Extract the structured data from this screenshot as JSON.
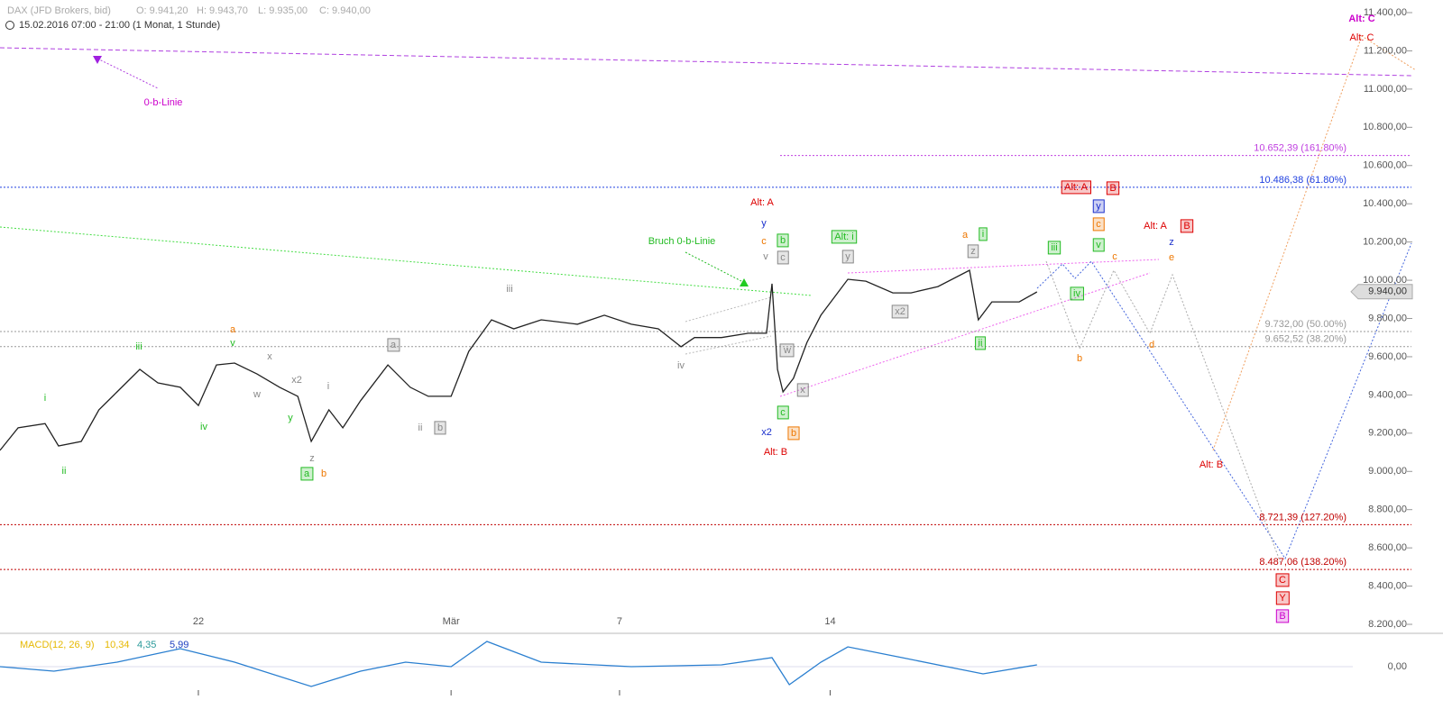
{
  "chart_data": [
    {
      "type": "line",
      "title": "DAX (JFD Brokers, bid)",
      "quote": [
        "O: 9.941,20",
        "H: 9.943,70",
        "L: 9.935,00",
        "C: 9.940,00"
      ],
      "subtitle": "15.02.2016 07:00 - 21:00 (1 Monat, 1 Stunde)",
      "color": "#222222",
      "x": [
        0.29,
        0.72,
        1.36,
        1.68,
        2.22,
        2.64,
        3.07,
        3.61,
        4.04,
        4.57,
        5.0,
        5.43,
        5.86,
        6.39,
        6.93,
        7.36,
        7.68,
        8.1,
        8.43,
        8.85,
        9.5,
        10.03,
        10.46,
        11.0,
        11.42,
        11.96,
        12.49,
        13.14,
        14.0,
        14.64,
        15.28,
        15.92,
        16.46,
        16.78,
        17.42,
        18.06,
        18.49,
        18.62,
        18.75,
        18.88,
        19.13,
        19.45,
        19.78,
        20.42,
        20.85,
        21.49,
        21.92,
        22.56,
        23.31,
        23.52,
        23.84,
        24.49,
        24.91
      ],
      "values": [
        9110,
        9228,
        9250,
        9133,
        9157,
        9322,
        9416,
        9534,
        9463,
        9440,
        9345,
        9557,
        9567,
        9510,
        9440,
        9393,
        9157,
        9322,
        9228,
        9370,
        9557,
        9440,
        9393,
        9393,
        9628,
        9793,
        9746,
        9793,
        9770,
        9817,
        9770,
        9746,
        9652,
        9700,
        9700,
        9723,
        9723,
        9982,
        9534,
        9416,
        9487,
        9675,
        9817,
        10005,
        9995,
        9934,
        9934,
        9967,
        10052,
        9793,
        9887,
        9887,
        9939
      ],
      "xlim": [
        0.29,
        32.41
      ],
      "xticks": [
        {
          "value": 5,
          "label": "22"
        },
        {
          "value": 11,
          "label": "Mär"
        },
        {
          "value": 15,
          "label": "7"
        },
        {
          "value": 20,
          "label": "14"
        }
      ],
      "ylim": [
        8153,
        11466
      ],
      "yticks": [
        {
          "value": 8200,
          "label": "8.200,00"
        },
        {
          "value": 8400,
          "label": "8.400,00"
        },
        {
          "value": 8600,
          "label": "8.600,00"
        },
        {
          "value": 8800,
          "label": "8.800,00"
        },
        {
          "value": 9000,
          "label": "9.000,00"
        },
        {
          "value": 9200,
          "label": "9.200,00"
        },
        {
          "value": 9400,
          "label": "9.400,00"
        },
        {
          "value": 9600,
          "label": "9.600,00"
        },
        {
          "value": 9800,
          "label": "9.800,00"
        },
        {
          "value": 10000,
          "label": "10.000,00"
        },
        {
          "value": 10200,
          "label": "10.200,00"
        },
        {
          "value": 10400,
          "label": "10.400,00"
        },
        {
          "value": 10600,
          "label": "10.600,00"
        },
        {
          "value": 10800,
          "label": "10.800,00"
        },
        {
          "value": 11000,
          "label": "11.000,00"
        },
        {
          "value": 11200,
          "label": "11.200,00"
        },
        {
          "value": 11400,
          "label": "11.400,00"
        }
      ],
      "last": {
        "value": 9940,
        "label": "9.940,00"
      },
      "levels": [
        {
          "value": 10652.39,
          "label": "10.652,39 (161.80%)",
          "color": "#c040e0"
        },
        {
          "value": 10486.38,
          "label": "10.486,38 (61.80%)",
          "color": "#2040e0"
        },
        {
          "value": 9732.0,
          "label": "9.732,00 (50.00%)",
          "color": "#999999"
        },
        {
          "value": 9652.52,
          "label": "9.652,52 (38.20%)",
          "color": "#999999"
        },
        {
          "value": 8721.39,
          "label": "8.721,39 (127.20%)",
          "color": "#c00000"
        },
        {
          "value": 8487.06,
          "label": "8.487,06 (138.20%)",
          "color": "#c00000"
        }
      ],
      "annotations": [
        {
          "text": "0-b-Linie",
          "color": "#cc00cc",
          "boxed": false
        },
        {
          "text": "Bruch 0-b-Linie",
          "color": "#22bb22",
          "boxed": false
        },
        {
          "text": "i",
          "color": "#22bb22",
          "boxed": false
        },
        {
          "text": "ii",
          "color": "#22bb22",
          "boxed": false
        },
        {
          "text": "iii",
          "color": "#22bb22",
          "boxed": false
        },
        {
          "text": "iv",
          "color": "#22bb22",
          "boxed": false
        },
        {
          "text": "a",
          "color": "#ee7700",
          "boxed": false
        },
        {
          "text": "v",
          "color": "#22bb22",
          "boxed": false
        },
        {
          "text": "x",
          "color": "#888888",
          "boxed": false
        },
        {
          "text": "w",
          "color": "#888888",
          "boxed": false
        },
        {
          "text": "x2",
          "color": "#888888",
          "boxed": false
        },
        {
          "text": "y",
          "color": "#22bb22",
          "boxed": false
        },
        {
          "text": "z",
          "color": "#888888",
          "boxed": false
        },
        {
          "text": "a",
          "color": "#22bb22",
          "boxed": true
        },
        {
          "text": "b",
          "color": "#ee7700",
          "boxed": false
        },
        {
          "text": "i",
          "color": "#888888",
          "boxed": false
        },
        {
          "text": "a",
          "color": "#888888",
          "boxed": true
        },
        {
          "text": "ii",
          "color": "#888888",
          "boxed": false
        },
        {
          "text": "b",
          "color": "#888888",
          "boxed": true
        },
        {
          "text": "iii",
          "color": "#888888",
          "boxed": false
        },
        {
          "text": "iv",
          "color": "#888888",
          "boxed": false
        },
        {
          "text": "Alt: A",
          "color": "#dd0000",
          "boxed": false
        },
        {
          "text": "y",
          "color": "#1a2fcc",
          "boxed": false
        },
        {
          "text": "c",
          "color": "#ee7700",
          "boxed": false
        },
        {
          "text": "v",
          "color": "#888888",
          "boxed": false
        },
        {
          "text": "b",
          "color": "#22bb22",
          "boxed": true
        },
        {
          "text": "c",
          "color": "#888888",
          "boxed": true
        },
        {
          "text": "w",
          "color": "#888888",
          "boxed": true
        },
        {
          "text": "x",
          "color": "#888888",
          "boxed": true
        },
        {
          "text": "c",
          "color": "#22bb22",
          "boxed": true
        },
        {
          "text": "x2",
          "color": "#1a2fcc",
          "boxed": false
        },
        {
          "text": "b",
          "color": "#ee7700",
          "boxed": true
        },
        {
          "text": "Alt: B",
          "color": "#dd0000",
          "boxed": false
        },
        {
          "text": "Alt: i",
          "color": "#22bb22",
          "boxed": true
        },
        {
          "text": "y",
          "color": "#888888",
          "boxed": true
        },
        {
          "text": "x2",
          "color": "#888888",
          "boxed": true
        },
        {
          "text": "a",
          "color": "#ee7700",
          "boxed": false
        },
        {
          "text": "i",
          "color": "#22bb22",
          "boxed": true
        },
        {
          "text": "z",
          "color": "#888888",
          "boxed": true
        },
        {
          "text": "ii",
          "color": "#22bb22",
          "boxed": true
        },
        {
          "text": "iii",
          "color": "#22bb22",
          "boxed": true
        },
        {
          "text": "iv",
          "color": "#22bb22",
          "boxed": true
        },
        {
          "text": "b",
          "color": "#ee7700",
          "boxed": false
        },
        {
          "text": "Alt: A",
          "color": "#dd0000",
          "boxed": true
        },
        {
          "text": "B",
          "color": "#dd0000",
          "boxed": true
        },
        {
          "text": "y",
          "color": "#1a2fcc",
          "boxed": true
        },
        {
          "text": "c",
          "color": "#ee7700",
          "boxed": true
        },
        {
          "text": "v",
          "color": "#22bb22",
          "boxed": true
        },
        {
          "text": "c",
          "color": "#ee7700",
          "boxed": false
        },
        {
          "text": "Alt: A",
          "color": "#dd0000",
          "boxed": false
        },
        {
          "text": "B",
          "color": "#dd0000",
          "boxed": true
        },
        {
          "text": "z",
          "color": "#1a2fcc",
          "boxed": false
        },
        {
          "text": "e",
          "color": "#ee7700",
          "boxed": false
        },
        {
          "text": "d",
          "color": "#ee7700",
          "boxed": false
        },
        {
          "text": "Alt: B",
          "color": "#dd0000",
          "boxed": false
        },
        {
          "text": "C",
          "color": "#dd0000",
          "boxed": true
        },
        {
          "text": "Y",
          "color": "#dd0000",
          "boxed": true
        },
        {
          "text": "B",
          "color": "#cc00cc",
          "boxed": true
        },
        {
          "text": "Alt: C",
          "color": "#cc00cc",
          "boxed": false
        },
        {
          "text": "Alt: C",
          "color": "#dd0000",
          "boxed": false
        }
      ]
    },
    {
      "type": "line",
      "title": "MACD(12, 26, 9)",
      "readouts": [
        {
          "text": "10,34",
          "color": "#e6b800"
        },
        {
          "text": "4,35",
          "color": "#2a9a9a"
        },
        {
          "text": "5,99",
          "color": "#2040c0"
        }
      ],
      "color": "#2a7fd0",
      "x": [
        0.29,
        1.57,
        3.07,
        4.57,
        5.86,
        7.68,
        8.85,
        9.92,
        11.0,
        11.85,
        13.14,
        15.28,
        17.42,
        18.62,
        19.03,
        19.78,
        20.42,
        21.71,
        22.77,
        23.63,
        24.91
      ],
      "values": [
        0,
        -10,
        10,
        40,
        10,
        -44,
        -10,
        10,
        0,
        56,
        10,
        0,
        4,
        20,
        -40,
        10,
        44,
        20,
        0,
        -16,
        4
      ],
      "ylim": [
        -60,
        60
      ],
      "yticks": [
        {
          "value": 0,
          "label": "0,00"
        }
      ]
    }
  ]
}
